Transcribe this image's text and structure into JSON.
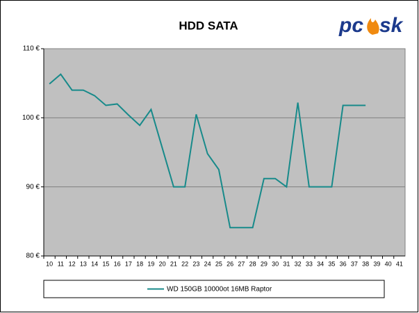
{
  "chart_data": {
    "type": "line",
    "title": "HDD SATA",
    "logo": {
      "left": "pc",
      "right": "sk"
    },
    "categories": [
      "10",
      "11",
      "12",
      "13",
      "14",
      "15",
      "16",
      "17",
      "18",
      "19",
      "20",
      "21",
      "22",
      "23",
      "24",
      "25",
      "26",
      "27",
      "28",
      "29",
      "30",
      "31",
      "32",
      "33",
      "34",
      "35",
      "36",
      "37",
      "38",
      "39",
      "40",
      "41"
    ],
    "series": [
      {
        "name": "WD 150GB 10000ot 16MB Raptor",
        "color": "#178a8a",
        "values": [
          104.9,
          106.3,
          104.0,
          104.0,
          103.2,
          101.8,
          102.0,
          100.4,
          98.9,
          101.2,
          95.6,
          90.0,
          90.0,
          100.5,
          94.8,
          92.5,
          84.1,
          84.1,
          84.1,
          91.2,
          91.2,
          90.0,
          102.2,
          90.0,
          90.0,
          90.0,
          101.8,
          101.8,
          101.8,
          null,
          null,
          null
        ]
      }
    ],
    "ylim": [
      80,
      110
    ],
    "yticks": [
      {
        "value": 80,
        "label": "80 €"
      },
      {
        "value": 90,
        "label": "90 €"
      },
      {
        "value": 100,
        "label": "100 €"
      },
      {
        "value": 110,
        "label": "110 €"
      }
    ],
    "grid": true,
    "plot_background": "#c0c0c0",
    "legend": "bottom"
  }
}
